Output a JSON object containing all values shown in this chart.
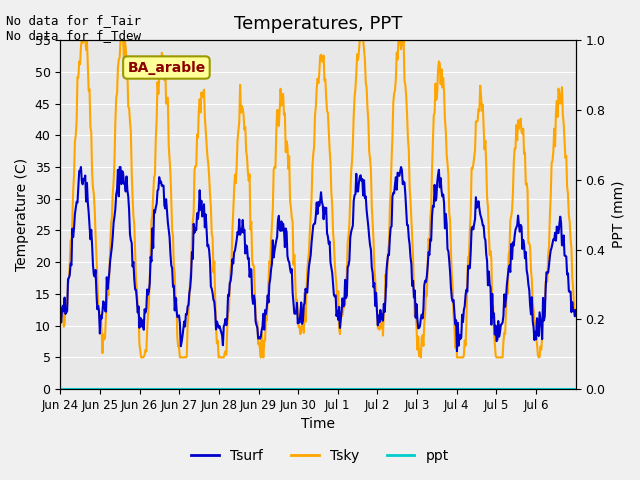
{
  "title": "Temperatures, PPT",
  "xlabel": "Time",
  "ylabel_left": "Temperature (C)",
  "ylabel_right": "PPT (mm)",
  "text_top_left": "No data for f_Tair\nNo data for f_Tdew",
  "annotation_box": "BA_arable",
  "ylim_left": [
    0,
    55
  ],
  "ylim_right": [
    0.0,
    1.0
  ],
  "yticks_left": [
    0,
    5,
    10,
    15,
    20,
    25,
    30,
    35,
    40,
    45,
    50,
    55
  ],
  "yticks_right": [
    0.0,
    0.2,
    0.4,
    0.6,
    0.8,
    1.0
  ],
  "background_color": "#f0f0f0",
  "plot_bg_color": "#e8e8e8",
  "tsurf_color": "#0000cc",
  "tsky_color": "#ffa500",
  "ppt_color": "#00cccc",
  "legend_entries": [
    "Tsurf",
    "Tsky",
    "ppt"
  ],
  "x_tick_labels": [
    "Jun 24",
    "Jun 25",
    "Jun 26",
    "Jun 27",
    "Jun 28",
    "Jun 29",
    "Jun 30",
    "Jul 1",
    "Jul 2",
    "Jul 3",
    "Jul 4",
    "Jul 5",
    "Jul 6"
  ],
  "n_points": 600
}
